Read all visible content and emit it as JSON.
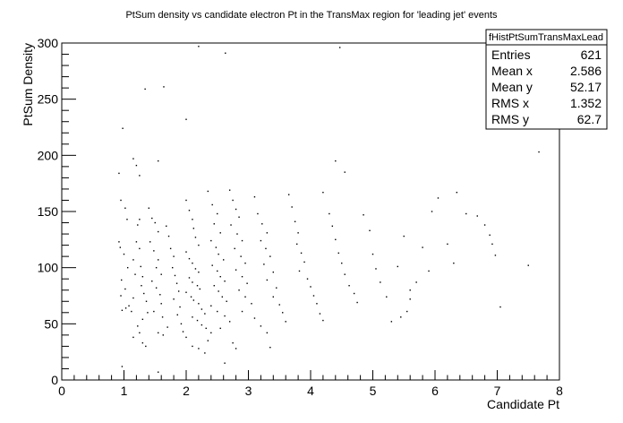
{
  "chart_data": {
    "type": "scatter",
    "title": "PtSum density vs candidate electron Pt in the TransMax region for 'leading jet' events",
    "xlabel": "Candidate Pt",
    "ylabel": "PtSum Density",
    "xlim": [
      0,
      8
    ],
    "ylim": [
      0,
      300
    ],
    "xticks": [
      "0",
      "1",
      "2",
      "3",
      "4",
      "5",
      "6",
      "7",
      "8"
    ],
    "yticks": [
      "0",
      "50",
      "100",
      "150",
      "200",
      "250",
      "300"
    ],
    "grid": false,
    "stats_box": {
      "name": "fHistPtSumTransMaxLead",
      "rows": [
        {
          "label": "Entries",
          "value": "621"
        },
        {
          "label": "Mean x",
          "value": "2.586"
        },
        {
          "label": "Mean y",
          "value": "52.17"
        },
        {
          "label": "RMS x",
          "value": "1.352"
        },
        {
          "label": "RMS y",
          "value": "62.7"
        }
      ]
    },
    "points": [
      [
        0.92,
        184
      ],
      [
        0.98,
        224
      ],
      [
        1.15,
        197
      ],
      [
        1.2,
        191
      ],
      [
        1.25,
        182
      ],
      [
        1.55,
        195
      ],
      [
        1.64,
        261
      ],
      [
        1.34,
        259
      ],
      [
        2.0,
        232
      ],
      [
        2.2,
        297
      ],
      [
        2.63,
        291
      ],
      [
        4.47,
        296
      ],
      [
        7.67,
        203
      ],
      [
        0.95,
        160
      ],
      [
        1.02,
        153
      ],
      [
        1.05,
        143
      ],
      [
        0.92,
        123
      ],
      [
        0.94,
        118
      ],
      [
        1.0,
        112
      ],
      [
        1.06,
        100
      ],
      [
        0.96,
        89
      ],
      [
        1.02,
        81
      ],
      [
        0.95,
        75
      ],
      [
        0.97,
        62
      ],
      [
        1.03,
        64
      ],
      [
        1.08,
        66
      ],
      [
        1.12,
        61
      ],
      [
        1.15,
        73
      ],
      [
        1.18,
        94
      ],
      [
        1.15,
        107
      ],
      [
        1.2,
        123
      ],
      [
        1.22,
        138
      ],
      [
        1.25,
        143
      ],
      [
        1.25,
        117
      ],
      [
        1.27,
        101
      ],
      [
        1.3,
        92
      ],
      [
        1.28,
        84
      ],
      [
        1.32,
        77
      ],
      [
        1.36,
        70
      ],
      [
        1.38,
        60
      ],
      [
        1.3,
        54
      ],
      [
        1.22,
        48
      ],
      [
        1.25,
        42
      ],
      [
        1.15,
        38
      ],
      [
        1.3,
        33
      ],
      [
        1.35,
        30
      ],
      [
        0.97,
        12
      ],
      [
        1.55,
        7
      ],
      [
        1.4,
        153
      ],
      [
        1.45,
        144
      ],
      [
        1.5,
        140
      ],
      [
        1.55,
        132
      ],
      [
        1.42,
        123
      ],
      [
        1.48,
        115
      ],
      [
        1.55,
        107
      ],
      [
        1.52,
        100
      ],
      [
        1.6,
        94
      ],
      [
        1.45,
        88
      ],
      [
        1.52,
        82
      ],
      [
        1.58,
        76
      ],
      [
        1.6,
        68
      ],
      [
        1.48,
        61
      ],
      [
        1.62,
        56
      ],
      [
        1.7,
        47
      ],
      [
        1.55,
        42
      ],
      [
        1.63,
        40
      ],
      [
        1.68,
        137
      ],
      [
        1.72,
        128
      ],
      [
        1.75,
        117
      ],
      [
        1.8,
        110
      ],
      [
        1.78,
        100
      ],
      [
        1.82,
        93
      ],
      [
        1.85,
        86
      ],
      [
        1.88,
        79
      ],
      [
        1.8,
        72
      ],
      [
        1.9,
        65
      ],
      [
        1.86,
        58
      ],
      [
        1.92,
        50
      ],
      [
        1.95,
        43
      ],
      [
        2.0,
        160
      ],
      [
        2.05,
        151
      ],
      [
        2.1,
        143
      ],
      [
        2.12,
        135
      ],
      [
        2.15,
        127
      ],
      [
        2.2,
        120
      ],
      [
        2.0,
        114
      ],
      [
        2.05,
        108
      ],
      [
        2.1,
        104
      ],
      [
        2.15,
        99
      ],
      [
        2.2,
        96
      ],
      [
        2.05,
        91
      ],
      [
        2.1,
        87
      ],
      [
        2.18,
        84
      ],
      [
        2.22,
        81
      ],
      [
        2.0,
        78
      ],
      [
        2.08,
        74
      ],
      [
        2.12,
        71
      ],
      [
        2.2,
        68
      ],
      [
        2.25,
        63
      ],
      [
        2.3,
        59
      ],
      [
        2.1,
        56
      ],
      [
        2.18,
        53
      ],
      [
        2.25,
        49
      ],
      [
        2.32,
        46
      ],
      [
        2.0,
        38
      ],
      [
        2.1,
        30
      ],
      [
        2.2,
        28
      ],
      [
        2.3,
        24
      ],
      [
        2.35,
        35
      ],
      [
        2.4,
        42
      ],
      [
        2.35,
        168
      ],
      [
        2.42,
        156
      ],
      [
        2.5,
        148
      ],
      [
        2.45,
        139
      ],
      [
        2.55,
        131
      ],
      [
        2.4,
        124
      ],
      [
        2.48,
        118
      ],
      [
        2.52,
        112
      ],
      [
        2.6,
        107
      ],
      [
        2.42,
        102
      ],
      [
        2.5,
        97
      ],
      [
        2.55,
        92
      ],
      [
        2.62,
        88
      ],
      [
        2.45,
        84
      ],
      [
        2.52,
        79
      ],
      [
        2.58,
        74
      ],
      [
        2.65,
        70
      ],
      [
        2.4,
        66
      ],
      [
        2.5,
        61
      ],
      [
        2.62,
        57
      ],
      [
        2.7,
        52
      ],
      [
        2.55,
        46
      ],
      [
        2.75,
        33
      ],
      [
        2.8,
        28
      ],
      [
        2.62,
        15
      ],
      [
        2.7,
        169
      ],
      [
        2.75,
        160
      ],
      [
        2.8,
        152
      ],
      [
        2.85,
        145
      ],
      [
        2.72,
        138
      ],
      [
        2.82,
        130
      ],
      [
        2.9,
        124
      ],
      [
        2.78,
        117
      ],
      [
        2.88,
        110
      ],
      [
        2.95,
        104
      ],
      [
        2.8,
        98
      ],
      [
        2.9,
        92
      ],
      [
        2.98,
        86
      ],
      [
        2.85,
        80
      ],
      [
        2.95,
        74
      ],
      [
        3.05,
        68
      ],
      [
        2.9,
        61
      ],
      [
        3.1,
        55
      ],
      [
        3.2,
        48
      ],
      [
        3.3,
        42
      ],
      [
        3.35,
        29
      ],
      [
        3.1,
        163
      ],
      [
        3.15,
        148
      ],
      [
        3.22,
        139
      ],
      [
        3.3,
        131
      ],
      [
        3.2,
        124
      ],
      [
        3.28,
        117
      ],
      [
        3.35,
        110
      ],
      [
        3.25,
        103
      ],
      [
        3.4,
        96
      ],
      [
        3.3,
        89
      ],
      [
        3.45,
        82
      ],
      [
        3.4,
        74
      ],
      [
        3.5,
        67
      ],
      [
        3.55,
        60
      ],
      [
        3.6,
        52
      ],
      [
        3.65,
        165
      ],
      [
        3.7,
        154
      ],
      [
        3.75,
        141
      ],
      [
        3.8,
        131
      ],
      [
        3.78,
        121
      ],
      [
        3.85,
        113
      ],
      [
        3.9,
        105
      ],
      [
        3.82,
        97
      ],
      [
        3.95,
        90
      ],
      [
        4.0,
        83
      ],
      [
        4.05,
        75
      ],
      [
        4.1,
        68
      ],
      [
        4.15,
        59
      ],
      [
        4.2,
        53
      ],
      [
        4.2,
        167
      ],
      [
        4.3,
        148
      ],
      [
        4.35,
        137
      ],
      [
        4.4,
        125
      ],
      [
        4.45,
        113
      ],
      [
        4.5,
        104
      ],
      [
        4.55,
        94
      ],
      [
        4.62,
        84
      ],
      [
        4.7,
        77
      ],
      [
        4.75,
        69
      ],
      [
        4.4,
        195
      ],
      [
        4.55,
        185
      ],
      [
        4.85,
        147
      ],
      [
        4.95,
        133
      ],
      [
        5.0,
        112
      ],
      [
        5.05,
        99
      ],
      [
        5.12,
        87
      ],
      [
        5.22,
        74
      ],
      [
        5.3,
        52
      ],
      [
        5.45,
        56
      ],
      [
        5.55,
        61
      ],
      [
        5.6,
        72
      ],
      [
        5.5,
        128
      ],
      [
        5.4,
        101
      ],
      [
        5.7,
        87
      ],
      [
        5.8,
        118
      ],
      [
        5.95,
        150
      ],
      [
        5.9,
        97
      ],
      [
        6.05,
        162
      ],
      [
        6.2,
        121
      ],
      [
        6.35,
        167
      ],
      [
        6.5,
        148
      ],
      [
        6.68,
        146
      ],
      [
        6.8,
        138
      ],
      [
        6.88,
        129
      ],
      [
        6.92,
        121
      ],
      [
        6.97,
        111
      ],
      [
        7.05,
        65
      ],
      [
        7.5,
        102
      ],
      [
        5.6,
        80
      ],
      [
        6.3,
        104
      ]
    ]
  }
}
